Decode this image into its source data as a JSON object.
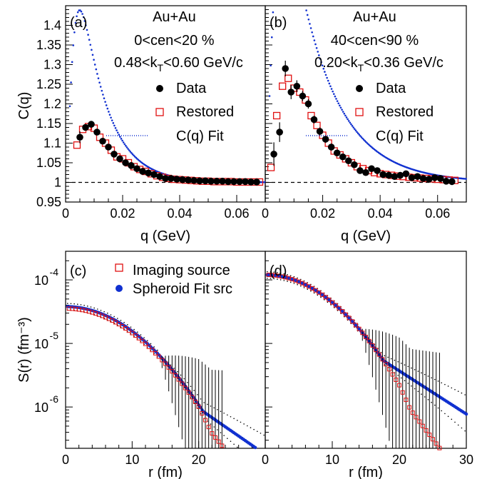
{
  "figure": {
    "panel_labels": [
      "(a)",
      "(b)",
      "(c)",
      "(d)"
    ],
    "colors": {
      "data": "#000000",
      "restored": "#e01010",
      "fit": "#1030d0",
      "reference": "#000000"
    }
  },
  "chart_data": [
    {
      "type": "scatter",
      "panel": "(a)",
      "annotations": [
        "Au+Au",
        "0<cen<20 %",
        "0.48<k_T<0.60 GeV/c"
      ],
      "xlabel": "q (GeV)",
      "ylabel": "C(q)",
      "xlim": [
        0,
        0.07
      ],
      "ylim": [
        0.95,
        1.45
      ],
      "xticks": [
        "0",
        "0.02",
        "0.04",
        "0.06"
      ],
      "yticks": [
        "0.95",
        "1",
        "1.05",
        "1.1",
        "1.15",
        "1.2",
        "1.25",
        "1.3",
        "1.35",
        "1.4"
      ],
      "reference_line": 1,
      "legend": [
        "Data",
        "Restored",
        "C(q) Fit"
      ],
      "series": [
        {
          "name": "Data",
          "marker": "filled-circle",
          "x": [
            0.005,
            0.007,
            0.009,
            0.011,
            0.013,
            0.015,
            0.017,
            0.019,
            0.021,
            0.023,
            0.025,
            0.027,
            0.029,
            0.031,
            0.033,
            0.035,
            0.037,
            0.039,
            0.041,
            0.043,
            0.045,
            0.047,
            0.049,
            0.051,
            0.053,
            0.055,
            0.057,
            0.059,
            0.061,
            0.063,
            0.065,
            0.067
          ],
          "y": [
            1.115,
            1.14,
            1.148,
            1.128,
            1.105,
            1.09,
            1.072,
            1.06,
            1.05,
            1.043,
            1.035,
            1.028,
            1.024,
            1.02,
            1.015,
            1.01,
            1.01,
            1.008,
            1.007,
            1.006,
            1.005,
            1.004,
            1.004,
            1.003,
            1.003,
            1.003,
            1.002,
            1.002,
            1.002,
            1.002,
            1.001,
            1.001
          ],
          "yerr": [
            0.015,
            0.008,
            0.006,
            0.005,
            0.004,
            0.004,
            0.003,
            0.003,
            0.003,
            0.003,
            0.003,
            0.003,
            0.003,
            0.003,
            0.003,
            0.003,
            0.003,
            0.003,
            0.003,
            0.003,
            0.003,
            0.003,
            0.003,
            0.003,
            0.003,
            0.003,
            0.003,
            0.003,
            0.003,
            0.003,
            0.003,
            0.003
          ]
        },
        {
          "name": "Restored",
          "marker": "open-square",
          "x": [
            0.004,
            0.006,
            0.008,
            0.01,
            0.012,
            0.014,
            0.016,
            0.018,
            0.02,
            0.022,
            0.024,
            0.026,
            0.028,
            0.03,
            0.032,
            0.034,
            0.036,
            0.038,
            0.04,
            0.042,
            0.044,
            0.046,
            0.048,
            0.05,
            0.052,
            0.054,
            0.056,
            0.058,
            0.06,
            0.062,
            0.064,
            0.066,
            0.068
          ],
          "y": [
            1.095,
            1.135,
            1.142,
            1.138,
            1.115,
            1.1,
            1.082,
            1.065,
            1.06,
            1.05,
            1.04,
            1.033,
            1.028,
            1.022,
            1.017,
            1.013,
            1.01,
            1.008,
            1.007,
            1.006,
            1.005,
            1.004,
            1.003,
            1.003,
            1.002,
            1.002,
            1.002,
            1.002,
            1.001,
            1.001,
            1.001,
            1.001,
            1.001
          ]
        },
        {
          "name": "C(q) Fit",
          "line": "dotted",
          "model": {
            "amp": 0.95,
            "rise": 450,
            "decay": 110,
            "xmin": 0.0015
          }
        }
      ]
    },
    {
      "type": "scatter",
      "panel": "(b)",
      "annotations": [
        "Au+Au",
        "40<cen<90 %",
        "0.20<k_T<0.36 GeV/c"
      ],
      "xlabel": "q (GeV)",
      "ylabel": "",
      "xlim": [
        0,
        0.07
      ],
      "ylim": [
        0.95,
        1.45
      ],
      "xticks": [
        "0",
        "0.02",
        "0.04",
        "0.06"
      ],
      "reference_line": 1,
      "legend": [
        "Data",
        "Restored",
        "C(q) Fit"
      ],
      "series": [
        {
          "name": "Data",
          "marker": "filled-circle",
          "x": [
            0.003,
            0.005,
            0.007,
            0.009,
            0.011,
            0.013,
            0.015,
            0.017,
            0.019,
            0.021,
            0.023,
            0.025,
            0.027,
            0.029,
            0.031,
            0.033,
            0.035,
            0.037,
            0.039,
            0.041,
            0.043,
            0.045,
            0.047,
            0.049,
            0.051,
            0.053,
            0.055,
            0.057,
            0.059,
            0.061,
            0.063,
            0.065
          ],
          "y": [
            1.072,
            1.128,
            1.29,
            1.23,
            1.245,
            1.22,
            1.2,
            1.16,
            1.13,
            1.11,
            1.09,
            1.075,
            1.065,
            1.055,
            1.045,
            1.03,
            1.025,
            1.035,
            1.03,
            1.02,
            1.018,
            1.015,
            1.018,
            1.022,
            1.012,
            1.015,
            1.01,
            1.008,
            1.012,
            1.01,
            1.003,
            1.002
          ],
          "yerr": [
            0.03,
            0.025,
            0.02,
            0.018,
            0.015,
            0.013,
            0.012,
            0.01,
            0.01,
            0.009,
            0.009,
            0.008,
            0.008,
            0.008,
            0.008,
            0.008,
            0.008,
            0.008,
            0.008,
            0.008,
            0.008,
            0.008,
            0.008,
            0.008,
            0.008,
            0.008,
            0.008,
            0.008,
            0.008,
            0.008,
            0.008,
            0.008
          ]
        },
        {
          "name": "Restored",
          "marker": "open-square",
          "x": [
            0.002,
            0.004,
            0.006,
            0.008,
            0.01,
            0.012,
            0.014,
            0.016,
            0.018,
            0.02,
            0.022,
            0.024,
            0.026,
            0.028,
            0.03,
            0.032,
            0.034,
            0.036,
            0.038,
            0.04,
            0.042,
            0.044,
            0.046,
            0.048,
            0.05,
            0.052,
            0.054,
            0.056,
            0.058,
            0.06,
            0.062,
            0.064,
            0.066
          ],
          "y": [
            1.038,
            1.17,
            1.245,
            1.265,
            1.24,
            1.23,
            1.21,
            1.17,
            1.145,
            1.12,
            1.1,
            1.08,
            1.07,
            1.06,
            1.05,
            1.04,
            1.035,
            1.03,
            1.025,
            1.022,
            1.02,
            1.018,
            1.016,
            1.015,
            1.013,
            1.012,
            1.011,
            1.01,
            1.009,
            1.008,
            1.007,
            1.006,
            1.005
          ]
        },
        {
          "name": "C(q) Fit",
          "line": "dotted",
          "model": {
            "amp": 1.2,
            "rise": 400,
            "decay": 70,
            "xmin": 0.0015
          }
        }
      ]
    },
    {
      "type": "scatter",
      "panel": "(c)",
      "xlabel": "r (fm)",
      "ylabel": "S(r) (fm⁻³)",
      "xlim": [
        0,
        30
      ],
      "ylim_log10": [
        -6.65,
        -3.55
      ],
      "xticks": [
        "0",
        "10",
        "20"
      ],
      "yticks_exponents": [
        "-4",
        "-5",
        "-6"
      ],
      "legend": [
        "Imaging source",
        "Spheroid Fit src"
      ],
      "series": [
        {
          "name": "Imaging source",
          "marker": "open-square",
          "model": {
            "log10_amp": -4.45,
            "rg": 5.3,
            "rt": 5.6
          },
          "x_range": [
            0.5,
            29
          ],
          "n": 58
        },
        {
          "name": "Spheroid Fit src",
          "marker": "filled-circle",
          "model": {
            "log10_amp": -4.42,
            "rg": 5.3,
            "rt": 6.0,
            "cutoff": 13
          },
          "x_range": [
            0.3,
            30
          ],
          "n": 120
        }
      ]
    },
    {
      "type": "scatter",
      "panel": "(d)",
      "xlabel": "r (fm)",
      "ylabel": "",
      "xlim": [
        0,
        30
      ],
      "ylim_log10": [
        -6.65,
        -3.55
      ],
      "xticks": [
        "0",
        "10",
        "20",
        "30"
      ],
      "series": [
        {
          "name": "Imaging source",
          "marker": "open-square",
          "model": {
            "log10_amp": -3.92,
            "rg": 5.0,
            "rt": 5.0
          },
          "x_range": [
            0.5,
            29
          ],
          "n": 58
        },
        {
          "name": "Spheroid Fit src",
          "marker": "filled-circle",
          "model": {
            "log10_amp": -3.92,
            "rg": 5.0,
            "rt": 6.4,
            "cutoff": 13
          },
          "x_range": [
            0.3,
            30
          ],
          "n": 120
        }
      ]
    }
  ]
}
